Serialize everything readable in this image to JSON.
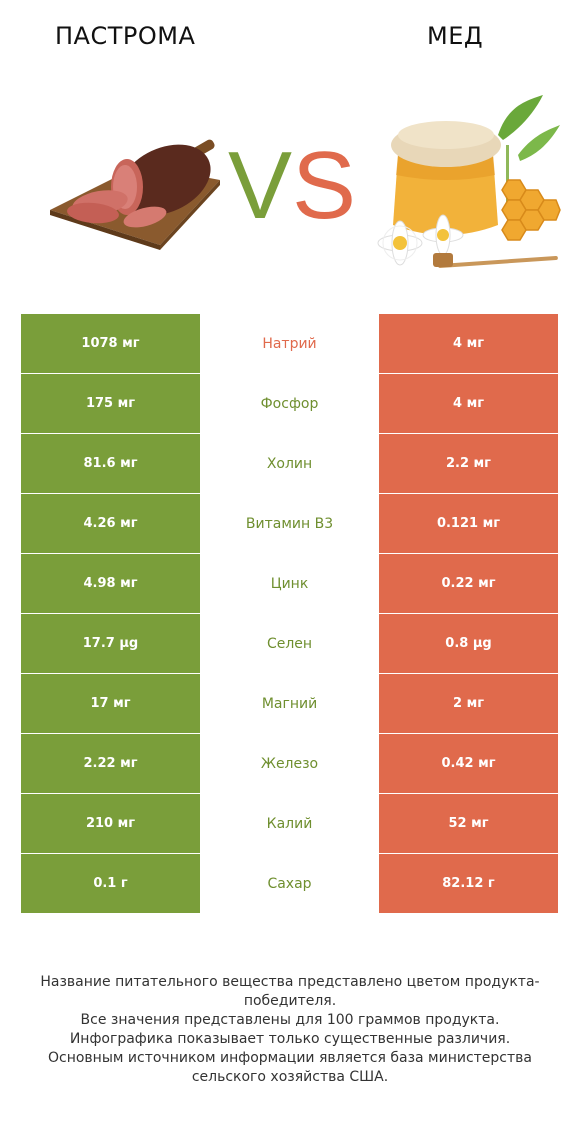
{
  "header": {
    "left_product": "ПАСТРОМА",
    "right_product": "МЕД"
  },
  "colors": {
    "left_accent": "#7a9e3a",
    "right_accent": "#e06a4c"
  },
  "vs": {
    "v": "V",
    "s": "S"
  },
  "nutrients": [
    {
      "name": "Натрий",
      "left": "1078 мг",
      "right": "4 мг",
      "winner": "right"
    },
    {
      "name": "Фосфор",
      "left": "175 мг",
      "right": "4 мг",
      "winner": "left"
    },
    {
      "name": "Холин",
      "left": "81.6 мг",
      "right": "2.2 мг",
      "winner": "left"
    },
    {
      "name": "Витамин B3",
      "left": "4.26 мг",
      "right": "0.121 мг",
      "winner": "left"
    },
    {
      "name": "Цинк",
      "left": "4.98 мг",
      "right": "0.22 мг",
      "winner": "left"
    },
    {
      "name": "Селен",
      "left": "17.7 µg",
      "right": "0.8 µg",
      "winner": "left"
    },
    {
      "name": "Магний",
      "left": "17 мг",
      "right": "2 мг",
      "winner": "left"
    },
    {
      "name": "Железо",
      "left": "2.22 мг",
      "right": "0.42 мг",
      "winner": "left"
    },
    {
      "name": "Калий",
      "left": "210 мг",
      "right": "52 мг",
      "winner": "left"
    },
    {
      "name": "Сахар",
      "left": "0.1 г",
      "right": "82.12 г",
      "winner": "left"
    }
  ],
  "footer": {
    "line1": "Название питательного вещества представлено цветом продукта-победителя.",
    "line2": "Все значения представлены для 100 граммов продукта.",
    "line3": "Инфографика показывает только существенные различия.",
    "line4": "Основным источником информации является база министерства сельского хозяйства США."
  }
}
